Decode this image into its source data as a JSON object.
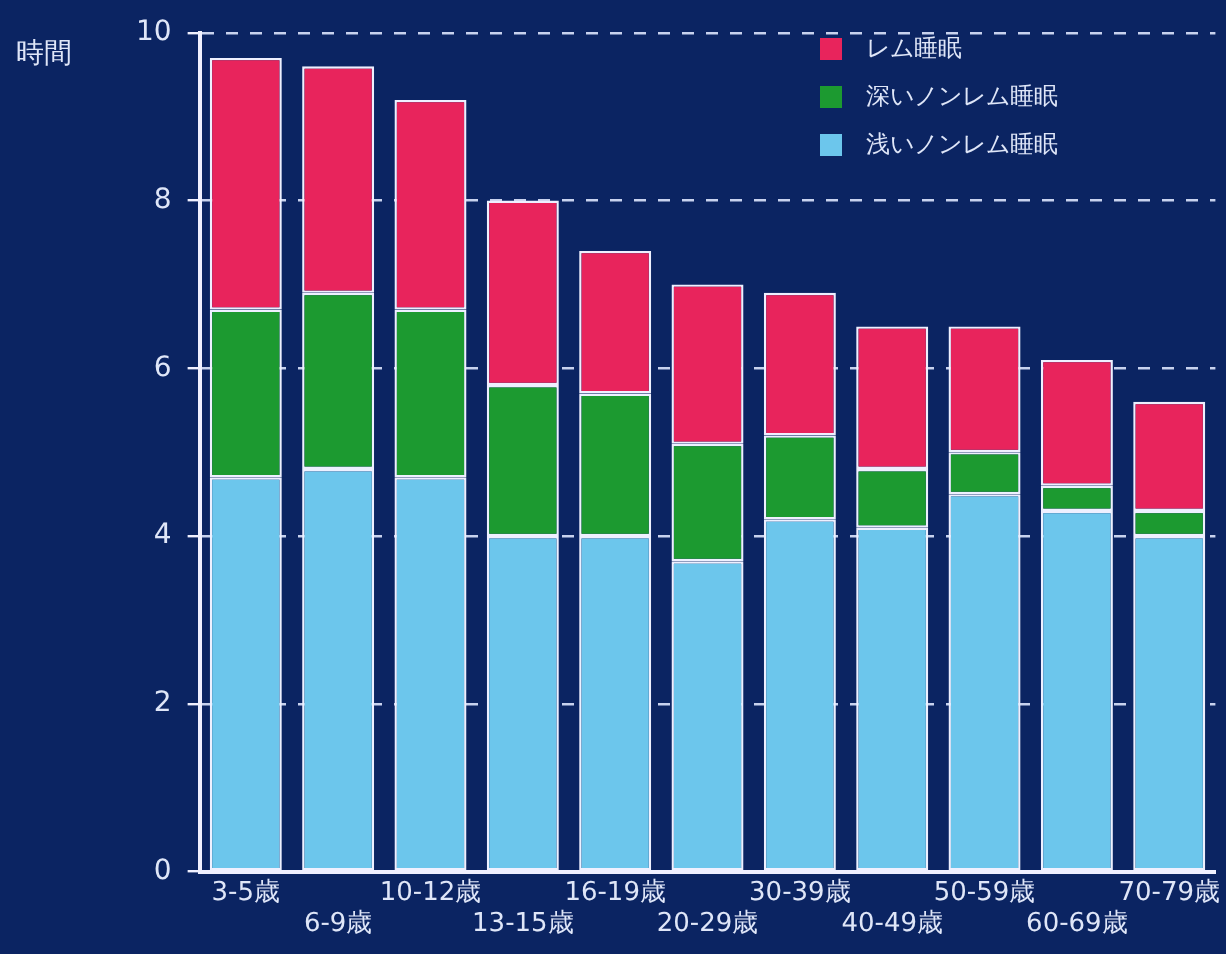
{
  "chart_data": {
    "type": "bar",
    "ylabel": "時間",
    "categories": [
      "3-5歳",
      "6-9歳",
      "10-12歳",
      "13-15歳",
      "16-19歳",
      "20-29歳",
      "30-39歳",
      "40-49歳",
      "50-59歳",
      "60-69歳",
      "70-79歳"
    ],
    "stacked": true,
    "series": [
      {
        "name": "浅いノンレム睡眠",
        "color": "#6cc6ec",
        "values": [
          4.7,
          4.8,
          4.7,
          4.0,
          4.0,
          3.7,
          4.2,
          4.1,
          4.5,
          4.3,
          4.0
        ]
      },
      {
        "name": "深いノンレム睡眠",
        "color": "#1c9a30",
        "values": [
          2.0,
          2.1,
          2.0,
          1.8,
          1.7,
          1.4,
          1.0,
          0.7,
          0.5,
          0.3,
          0.3
        ]
      },
      {
        "name": "レム睡眠",
        "color": "#e8245c",
        "values": [
          3.0,
          2.7,
          2.5,
          2.2,
          1.7,
          1.9,
          1.7,
          1.7,
          1.5,
          1.5,
          1.3
        ]
      }
    ],
    "ylim": [
      0,
      10
    ],
    "yticks": [
      0,
      2,
      4,
      6,
      8,
      10
    ],
    "grid": "y",
    "legend": "top right"
  }
}
